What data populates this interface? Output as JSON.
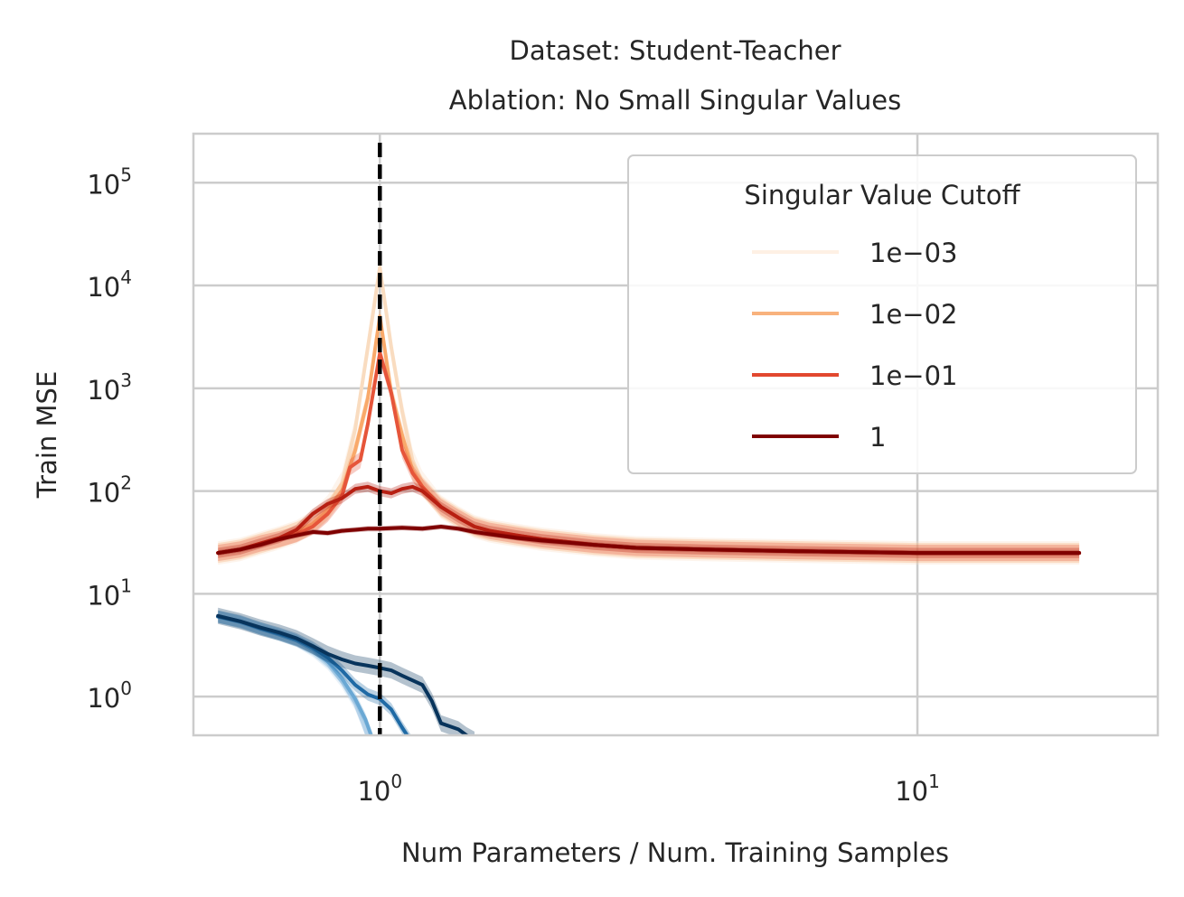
{
  "chart_data": {
    "type": "line",
    "title_lines": [
      "Dataset: Student-Teacher",
      "Ablation: No Small Singular Values"
    ],
    "xlabel": "Num Parameters / Num. Training Samples",
    "ylabel": "Train MSE",
    "xscale": "log",
    "yscale": "log",
    "xlim": [
      0.45,
      28
    ],
    "ylim": [
      0.42,
      300000
    ],
    "x_ticks": [
      {
        "value": 1,
        "base": "10",
        "exp": "0"
      },
      {
        "value": 10,
        "base": "10",
        "exp": "1"
      }
    ],
    "y_ticks": [
      {
        "value": 1,
        "base": "10",
        "exp": "0"
      },
      {
        "value": 10,
        "base": "10",
        "exp": "1"
      },
      {
        "value": 100,
        "base": "10",
        "exp": "2"
      },
      {
        "value": 1000,
        "base": "10",
        "exp": "3"
      },
      {
        "value": 10000,
        "base": "10",
        "exp": "4"
      },
      {
        "value": 100000,
        "base": "10",
        "exp": "5"
      }
    ],
    "grid": true,
    "vline": {
      "x": 1,
      "style": "dashed",
      "color": "#000000"
    },
    "legend": {
      "title": "Singular Value Cutoff",
      "placement": "upper-right",
      "entries": [
        {
          "label": "1e−03",
          "color": "#fef0e4"
        },
        {
          "label": "1e−02",
          "color": "#f8b27d"
        },
        {
          "label": "1e−01",
          "color": "#e2482f"
        },
        {
          "label": "1",
          "color": "#7f0000"
        }
      ]
    },
    "test_series": [
      {
        "cutoff": "1e-03",
        "color": "#f9dcc0",
        "band": 0.3,
        "points": [
          [
            0.5,
            25
          ],
          [
            0.55,
            27
          ],
          [
            0.6,
            31
          ],
          [
            0.65,
            35
          ],
          [
            0.7,
            40
          ],
          [
            0.75,
            50
          ],
          [
            0.8,
            70
          ],
          [
            0.85,
            120
          ],
          [
            0.9,
            400
          ],
          [
            0.95,
            2500
          ],
          [
            1.0,
            15000
          ],
          [
            1.05,
            2500
          ],
          [
            1.1,
            600
          ],
          [
            1.15,
            200
          ],
          [
            1.2,
            120
          ],
          [
            1.3,
            70
          ],
          [
            1.4,
            55
          ],
          [
            1.5,
            45
          ],
          [
            1.6,
            41
          ],
          [
            1.8,
            37
          ],
          [
            2.0,
            34
          ],
          [
            2.5,
            30
          ],
          [
            3.0,
            28
          ],
          [
            4.0,
            27
          ],
          [
            6.0,
            26
          ],
          [
            10.0,
            25
          ],
          [
            20.0,
            25
          ]
        ]
      },
      {
        "cutoff": "1e-02",
        "color": "#f9a96a",
        "band": 0.25,
        "points": [
          [
            0.5,
            25
          ],
          [
            0.55,
            27
          ],
          [
            0.6,
            31
          ],
          [
            0.65,
            35
          ],
          [
            0.7,
            40
          ],
          [
            0.75,
            48
          ],
          [
            0.8,
            65
          ],
          [
            0.85,
            100
          ],
          [
            0.9,
            250
          ],
          [
            0.95,
            800
          ],
          [
            1.0,
            5000
          ],
          [
            1.05,
            900
          ],
          [
            1.1,
            350
          ],
          [
            1.15,
            160
          ],
          [
            1.2,
            110
          ],
          [
            1.3,
            70
          ],
          [
            1.4,
            55
          ],
          [
            1.5,
            45
          ],
          [
            1.6,
            41
          ],
          [
            1.8,
            37
          ],
          [
            2.0,
            34
          ],
          [
            2.5,
            30
          ],
          [
            3.0,
            28
          ],
          [
            4.0,
            27
          ],
          [
            6.0,
            26
          ],
          [
            10.0,
            25
          ],
          [
            20.0,
            25
          ]
        ]
      },
      {
        "cutoff": "1e-01",
        "color": "#e6553a",
        "band": 0.2,
        "points": [
          [
            0.5,
            25
          ],
          [
            0.55,
            27
          ],
          [
            0.6,
            31
          ],
          [
            0.65,
            34
          ],
          [
            0.7,
            38
          ],
          [
            0.75,
            45
          ],
          [
            0.8,
            60
          ],
          [
            0.85,
            90
          ],
          [
            0.88,
            170
          ],
          [
            0.92,
            200
          ],
          [
            0.95,
            450
          ],
          [
            1.0,
            2200
          ],
          [
            1.05,
            900
          ],
          [
            1.1,
            250
          ],
          [
            1.15,
            150
          ],
          [
            1.2,
            110
          ],
          [
            1.3,
            70
          ],
          [
            1.4,
            55
          ],
          [
            1.5,
            45
          ],
          [
            1.6,
            41
          ],
          [
            1.8,
            37
          ],
          [
            2.0,
            34
          ],
          [
            2.5,
            30
          ],
          [
            3.0,
            28
          ],
          [
            4.0,
            27
          ],
          [
            6.0,
            26
          ],
          [
            10.0,
            25
          ],
          [
            20.0,
            25
          ]
        ]
      },
      {
        "cutoff": "1",
        "color": "#b71f12",
        "band": 0.12,
        "points": [
          [
            0.5,
            25
          ],
          [
            0.55,
            27
          ],
          [
            0.6,
            31
          ],
          [
            0.65,
            35
          ],
          [
            0.7,
            42
          ],
          [
            0.75,
            60
          ],
          [
            0.8,
            75
          ],
          [
            0.85,
            85
          ],
          [
            0.9,
            105
          ],
          [
            0.95,
            110
          ],
          [
            1.0,
            100
          ],
          [
            1.05,
            95
          ],
          [
            1.1,
            105
          ],
          [
            1.15,
            110
          ],
          [
            1.2,
            100
          ],
          [
            1.3,
            70
          ],
          [
            1.4,
            55
          ],
          [
            1.5,
            45
          ],
          [
            1.6,
            41
          ],
          [
            1.8,
            37
          ],
          [
            2.0,
            34
          ],
          [
            2.5,
            30
          ],
          [
            3.0,
            28
          ],
          [
            4.0,
            27
          ],
          [
            6.0,
            26
          ],
          [
            10.0,
            25
          ],
          [
            20.0,
            25
          ]
        ]
      },
      {
        "cutoff": "0",
        "color": "#7f0000",
        "band": 0.06,
        "points": [
          [
            0.5,
            25
          ],
          [
            0.55,
            27
          ],
          [
            0.6,
            30
          ],
          [
            0.65,
            34
          ],
          [
            0.7,
            37
          ],
          [
            0.75,
            40
          ],
          [
            0.8,
            39
          ],
          [
            0.85,
            41
          ],
          [
            0.9,
            42
          ],
          [
            0.95,
            43
          ],
          [
            1.0,
            43
          ],
          [
            1.1,
            44
          ],
          [
            1.2,
            43
          ],
          [
            1.3,
            45
          ],
          [
            1.4,
            43
          ],
          [
            1.5,
            40
          ],
          [
            1.6,
            38
          ],
          [
            1.8,
            35
          ],
          [
            2.0,
            33
          ],
          [
            2.5,
            30
          ],
          [
            3.0,
            28
          ],
          [
            4.0,
            27
          ],
          [
            6.0,
            26
          ],
          [
            10.0,
            25
          ],
          [
            20.0,
            25
          ]
        ]
      }
    ],
    "train_series": [
      {
        "cutoff": "1e-03",
        "color": "#b7d3ea",
        "band": 0.15,
        "points": [
          [
            0.5,
            6.0
          ],
          [
            0.55,
            5.3
          ],
          [
            0.6,
            4.5
          ],
          [
            0.65,
            4.0
          ],
          [
            0.7,
            3.5
          ],
          [
            0.75,
            2.8
          ],
          [
            0.8,
            2.1
          ],
          [
            0.85,
            1.4
          ],
          [
            0.9,
            0.85
          ],
          [
            0.93,
            0.55
          ],
          [
            0.96,
            0.35
          ]
        ]
      },
      {
        "cutoff": "1e-02",
        "color": "#6aa8d4",
        "band": 0.15,
        "points": [
          [
            0.5,
            6.0
          ],
          [
            0.55,
            5.3
          ],
          [
            0.6,
            4.6
          ],
          [
            0.65,
            4.0
          ],
          [
            0.7,
            3.5
          ],
          [
            0.75,
            2.9
          ],
          [
            0.8,
            2.2
          ],
          [
            0.85,
            1.5
          ],
          [
            0.9,
            0.95
          ],
          [
            0.94,
            0.6
          ],
          [
            0.97,
            0.38
          ]
        ]
      },
      {
        "cutoff": "1e-01",
        "color": "#1f6aa5",
        "band": 0.15,
        "points": [
          [
            0.5,
            6.0
          ],
          [
            0.55,
            5.4
          ],
          [
            0.6,
            4.6
          ],
          [
            0.65,
            4.1
          ],
          [
            0.7,
            3.6
          ],
          [
            0.75,
            3.0
          ],
          [
            0.8,
            2.4
          ],
          [
            0.85,
            1.8
          ],
          [
            0.9,
            1.3
          ],
          [
            0.95,
            1.05
          ],
          [
            1.0,
            0.95
          ],
          [
            1.05,
            0.75
          ],
          [
            1.1,
            0.5
          ],
          [
            1.15,
            0.35
          ]
        ]
      },
      {
        "cutoff": "1",
        "color": "#08345c",
        "band": 0.2,
        "points": [
          [
            0.5,
            6.1
          ],
          [
            0.55,
            5.4
          ],
          [
            0.6,
            4.7
          ],
          [
            0.65,
            4.2
          ],
          [
            0.7,
            3.7
          ],
          [
            0.75,
            3.1
          ],
          [
            0.8,
            2.6
          ],
          [
            0.85,
            2.3
          ],
          [
            0.9,
            2.1
          ],
          [
            0.95,
            2.0
          ],
          [
            1.0,
            1.9
          ],
          [
            1.05,
            1.8
          ],
          [
            1.1,
            1.6
          ],
          [
            1.2,
            1.3
          ],
          [
            1.25,
            0.9
          ],
          [
            1.3,
            0.55
          ],
          [
            1.4,
            0.48
          ],
          [
            1.45,
            0.42
          ],
          [
            1.5,
            0.38
          ]
        ]
      }
    ]
  }
}
